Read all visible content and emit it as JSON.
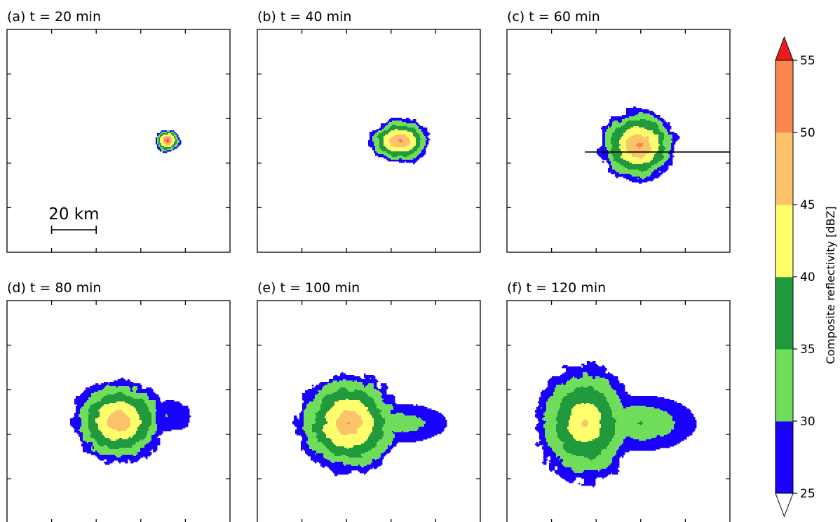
{
  "figure": {
    "colorbar": {
      "label": "Composite reflectivity [dBZ]",
      "ticks": [
        "25",
        "30",
        "35",
        "40",
        "45",
        "50",
        "55"
      ],
      "bins": [
        {
          "from": 25,
          "to": 30,
          "color": "#1a00ff"
        },
        {
          "from": 30,
          "to": 35,
          "color": "#6fdc5a"
        },
        {
          "from": 35,
          "to": 40,
          "color": "#219a3e"
        },
        {
          "from": 40,
          "to": 45,
          "color": "#ffff6e"
        },
        {
          "from": 45,
          "to": 50,
          "color": "#fdc36b"
        },
        {
          "from": 50,
          "to": 55,
          "color": "#fa8650"
        }
      ],
      "over_color": "#ee1b1b",
      "under_color": "#ffffff"
    },
    "scale_bar": {
      "label": "20 km",
      "length_km": 20
    }
  },
  "chart_data": [
    {
      "type": "heatmap",
      "title": "(a) t = 20 min",
      "blobs": [
        {
          "x": 72,
          "y": 50,
          "rx": 4.5,
          "ry": 4,
          "peak": 56,
          "seed": 1
        }
      ],
      "cross_section": null
    },
    {
      "type": "heatmap",
      "title": "(b) t = 40 min",
      "blobs": [
        {
          "x": 64,
          "y": 50,
          "rx": 11,
          "ry": 8,
          "peak": 52,
          "seed": 2
        }
      ],
      "cross_section": null
    },
    {
      "type": "heatmap",
      "title": "(c) t = 60 min",
      "blobs": [
        {
          "x": 59,
          "y": 52,
          "rx": 14,
          "ry": 13,
          "peak": 52,
          "seed": 3
        }
      ],
      "cross_section": {
        "x": [
          35,
          100
        ],
        "y": 55
      }
    },
    {
      "type": "heatmap",
      "title": "(d) t = 80 min",
      "blobs": [
        {
          "x": 50,
          "y": 54,
          "rx": 17,
          "ry": 15,
          "peak": 50,
          "seed": 4
        },
        {
          "x": 72,
          "y": 52,
          "rx": 11,
          "ry": 7,
          "peak": 30,
          "seed": 14
        }
      ],
      "cross_section": null
    },
    {
      "type": "heatmap",
      "title": "(e) t = 100 min",
      "blobs": [
        {
          "x": 41,
          "y": 55,
          "rx": 19,
          "ry": 18,
          "peak": 50,
          "seed": 5
        },
        {
          "x": 65,
          "y": 55,
          "rx": 18,
          "ry": 8,
          "peak": 34,
          "seed": 15
        }
      ],
      "cross_section": null
    },
    {
      "type": "heatmap",
      "title": "(f) t = 120 min",
      "blobs": [
        {
          "x": 35,
          "y": 55,
          "rx": 18,
          "ry": 22,
          "peak": 46,
          "seed": 6
        },
        {
          "x": 60,
          "y": 55,
          "rx": 22,
          "ry": 11,
          "peak": 36,
          "seed": 16
        }
      ],
      "cross_section": null
    }
  ]
}
